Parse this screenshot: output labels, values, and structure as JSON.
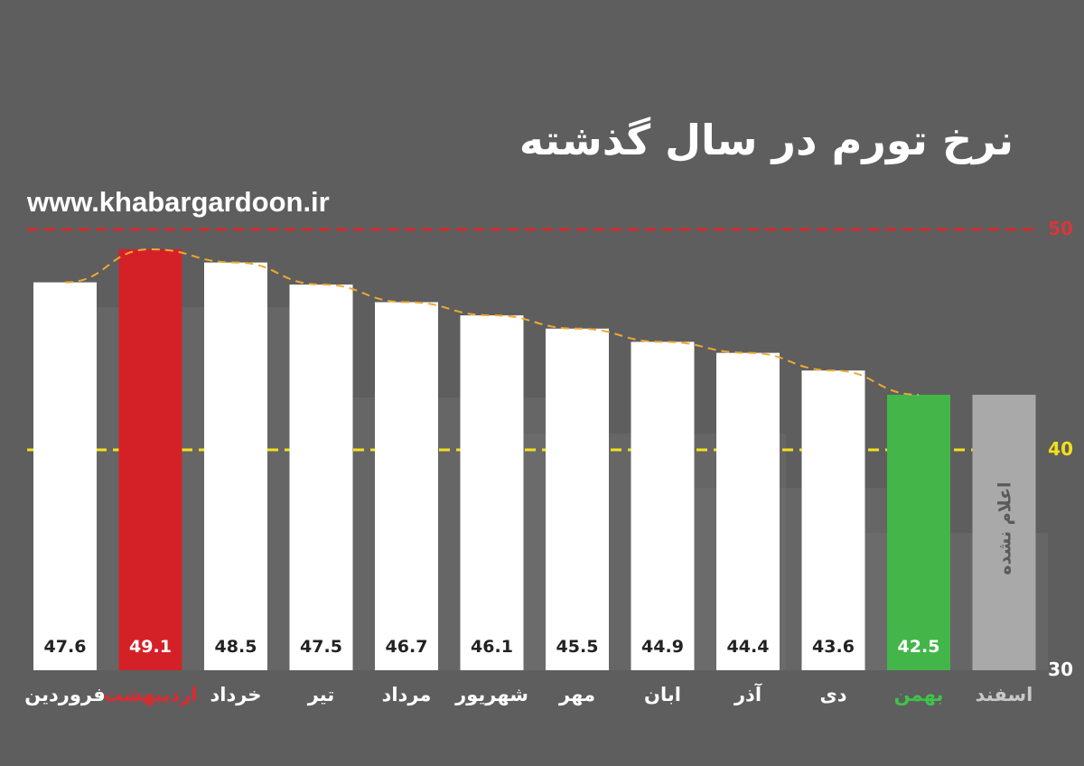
{
  "header": {
    "title": "نرخ تورم در سال گذشته",
    "website": "www.khabargardoon.ir"
  },
  "chart_data": {
    "type": "bar",
    "title": "نرخ تورم در سال گذشته",
    "categories": [
      "فروردین",
      "اردیبهشت",
      "خرداد",
      "تیر",
      "مرداد",
      "شهریور",
      "مهر",
      "ابان",
      "آذر",
      "دی",
      "بهمن",
      "اسفند"
    ],
    "values": [
      47.6,
      49.1,
      48.5,
      47.5,
      46.7,
      46.1,
      45.5,
      44.9,
      44.4,
      43.6,
      42.5,
      null
    ],
    "value_labels": [
      "47.6",
      "49.1",
      "48.5",
      "47.5",
      "46.7",
      "46.1",
      "45.5",
      "44.9",
      "44.4",
      "43.6",
      "42.5",
      ""
    ],
    "not_announced_label": "اعلام نشده",
    "ylim": [
      30,
      50
    ],
    "y_ticks": [
      "30",
      "40",
      "50"
    ],
    "reference_lines": [
      {
        "value": 50,
        "color": "#d42a2a",
        "style": "dashed"
      },
      {
        "value": 40,
        "color": "#f2e01c",
        "style": "dashed"
      }
    ],
    "trend_line": {
      "color": "#f0a830",
      "style": "dashed"
    },
    "colors": {
      "default": "#ffffff",
      "highlight_max": "#d42128",
      "highlight_latest": "#43b549",
      "not_announced": "#a9a9a9",
      "value_text": "#222222",
      "value_text_highlight": "#ffffff",
      "label_default": "#ffffff",
      "label_max": "#e0282e",
      "label_latest": "#3ec44a",
      "label_not_announced": "#c8c8c8"
    },
    "highlight": {
      "max_index": 1,
      "latest_index": 10,
      "not_announced_index": 11
    },
    "grid": false,
    "legend": "none"
  }
}
